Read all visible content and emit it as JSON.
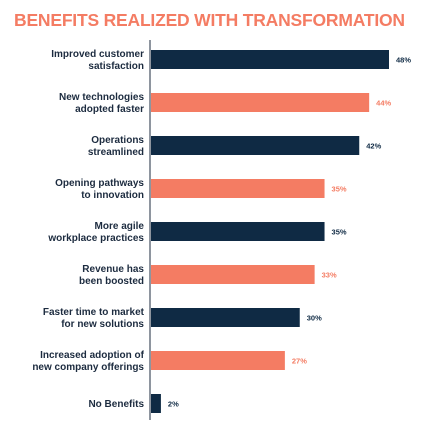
{
  "chart_data": {
    "type": "bar",
    "orientation": "horizontal",
    "title": "BENEFITS REALIZED WITH TRANSFORMATION",
    "categories": [
      [
        "Improved customer",
        "satisfaction"
      ],
      [
        "New technologies",
        "adopted faster"
      ],
      [
        "Operations",
        "streamlined"
      ],
      [
        "Opening pathways",
        "to innovation"
      ],
      [
        "More agile",
        "workplace practices"
      ],
      [
        "Revenue has",
        "been boosted"
      ],
      [
        "Faster time to market",
        "for new solutions"
      ],
      [
        "Increased adoption of",
        "new company offerings"
      ],
      [
        "No Benefits"
      ]
    ],
    "values": [
      48,
      44,
      42,
      35,
      35,
      33,
      30,
      27,
      2
    ],
    "value_labels": [
      "48%",
      "44%",
      "42%",
      "35%",
      "35%",
      "33%",
      "30%",
      "27%",
      "2%"
    ],
    "bar_colors": [
      "#0f2a44",
      "#f47c63",
      "#0f2a44",
      "#f47c63",
      "#0f2a44",
      "#f47c63",
      "#0f2a44",
      "#f47c63",
      "#0f2a44"
    ],
    "xlim": [
      0,
      48
    ],
    "grid": false,
    "legend": "none"
  },
  "colors": {
    "title": "#f47c63",
    "navy": "#0f2a44",
    "coral": "#f47c63",
    "axis": "#1c2b3f"
  }
}
